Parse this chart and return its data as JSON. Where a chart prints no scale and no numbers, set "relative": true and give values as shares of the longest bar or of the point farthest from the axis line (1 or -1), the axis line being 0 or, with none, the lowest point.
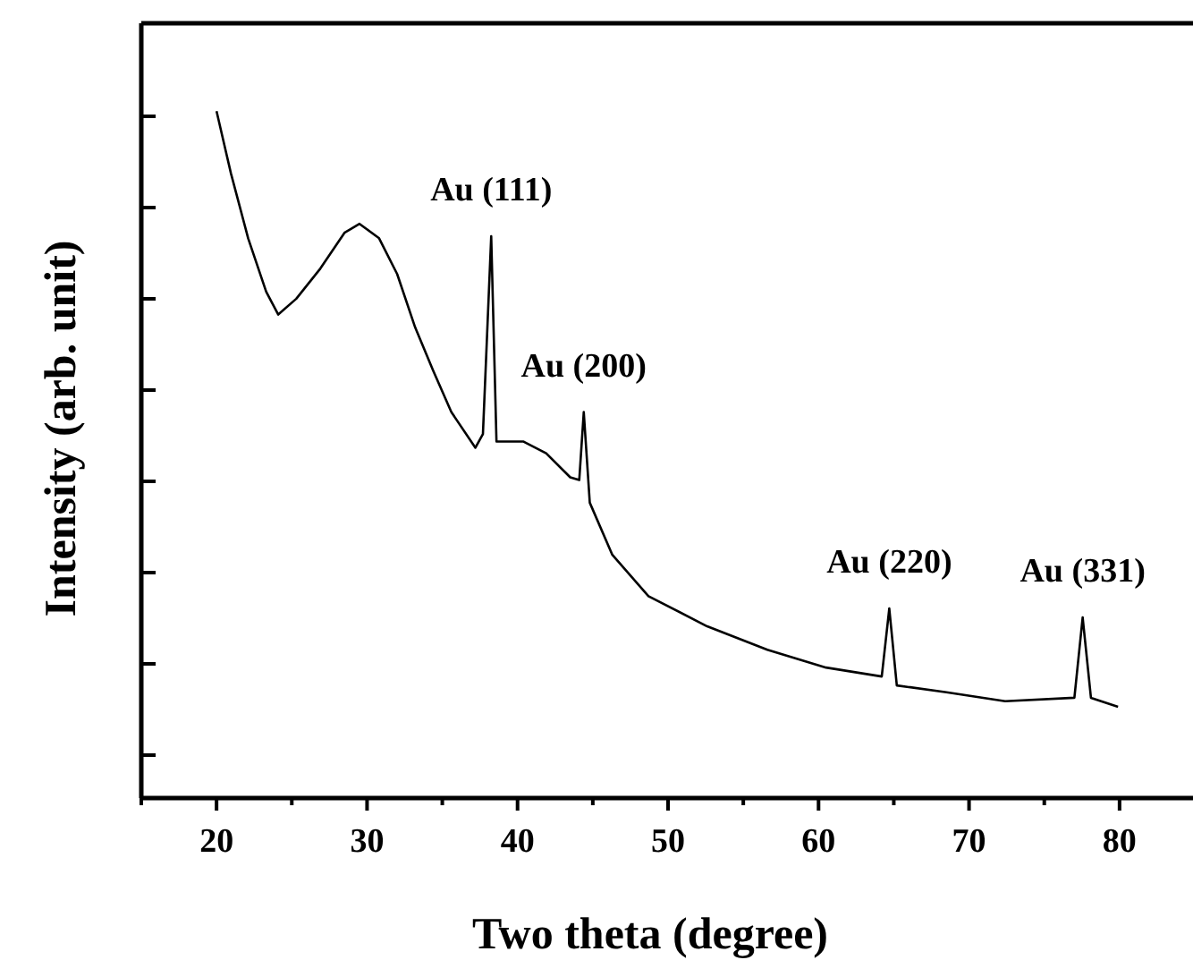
{
  "chart_data": {
    "type": "line",
    "xlabel": "Two theta (degree)",
    "ylabel": "Intensity (arb. unit)",
    "relative": true,
    "xlim": [
      15,
      85
    ],
    "xticks": [
      {
        "value": 15,
        "label": null
      },
      20,
      {
        "value": 25,
        "label": null
      },
      30,
      {
        "value": 35,
        "label": null
      },
      40,
      {
        "value": 45,
        "label": null
      },
      50,
      {
        "value": 55,
        "label": null
      },
      60,
      {
        "value": 65,
        "label": null
      },
      70,
      {
        "value": 75,
        "label": null
      },
      80,
      {
        "value": 85,
        "label": null
      }
    ],
    "x": [
      20.0,
      20.95,
      22.1,
      23.3,
      24.1,
      25.3,
      26.9,
      28.5,
      29.5,
      30.8,
      32.0,
      33.2,
      34.4,
      35.6,
      37.2,
      37.7,
      38.25,
      38.6,
      40.4,
      41.9,
      43.5,
      44.1,
      44.4,
      44.8,
      46.3,
      48.7,
      52.6,
      56.6,
      60.5,
      64.2,
      64.7,
      65.2,
      68.5,
      72.4,
      77.0,
      77.55,
      78.1,
      79.9
    ],
    "series": [
      {
        "color": "#000000",
        "values": [
          1.0,
          0.91,
          0.815,
          0.737,
          0.704,
          0.727,
          0.771,
          0.823,
          0.836,
          0.815,
          0.763,
          0.685,
          0.622,
          0.562,
          0.51,
          0.53,
          0.818,
          0.519,
          0.519,
          0.502,
          0.467,
          0.463,
          0.562,
          0.43,
          0.354,
          0.294,
          0.25,
          0.216,
          0.19,
          0.177,
          0.276,
          0.164,
          0.154,
          0.141,
          0.146,
          0.263,
          0.146,
          0.133
        ]
      }
    ],
    "annotations": [
      {
        "text": "Au (111)",
        "x": 38.25,
        "y": 0.818
      },
      {
        "text": "Au (200)",
        "x": 44.4,
        "y": 0.562
      },
      {
        "text": "Au (220)",
        "x": 64.7,
        "y": 0.276
      },
      {
        "text": "Au (331)",
        "x": 77.55,
        "y": 0.263
      }
    ],
    "line_style": "solid",
    "grid": false
  }
}
